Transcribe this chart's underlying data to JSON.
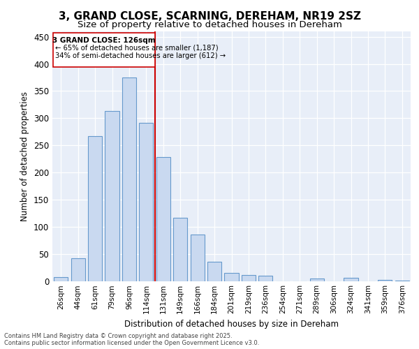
{
  "title": "3, GRAND CLOSE, SCARNING, DEREHAM, NR19 2SZ",
  "subtitle": "Size of property relative to detached houses in Dereham",
  "xlabel": "Distribution of detached houses by size in Dereham",
  "ylabel": "Number of detached properties",
  "categories": [
    "26sqm",
    "44sqm",
    "61sqm",
    "79sqm",
    "96sqm",
    "114sqm",
    "131sqm",
    "149sqm",
    "166sqm",
    "184sqm",
    "201sqm",
    "219sqm",
    "236sqm",
    "254sqm",
    "271sqm",
    "289sqm",
    "306sqm",
    "324sqm",
    "341sqm",
    "359sqm",
    "376sqm"
  ],
  "values": [
    7,
    42,
    267,
    313,
    375,
    292,
    228,
    117,
    85,
    35,
    15,
    11,
    10,
    0,
    0,
    5,
    0,
    6,
    0,
    2,
    1
  ],
  "bar_color": "#c9d9f0",
  "bar_edge_color": "#6699cc",
  "annotation_title": "3 GRAND CLOSE: 126sqm",
  "annotation_line1": "← 65% of detached houses are smaller (1,187)",
  "annotation_line2": "34% of semi-detached houses are larger (612) →",
  "vline_color": "#cc0000",
  "box_edge_color": "#cc0000",
  "ylim": [
    0,
    460
  ],
  "yticks": [
    0,
    50,
    100,
    150,
    200,
    250,
    300,
    350,
    400,
    450
  ],
  "background_color": "#e8eef8",
  "footer_line1": "Contains HM Land Registry data © Crown copyright and database right 2025.",
  "footer_line2": "Contains public sector information licensed under the Open Government Licence v3.0."
}
